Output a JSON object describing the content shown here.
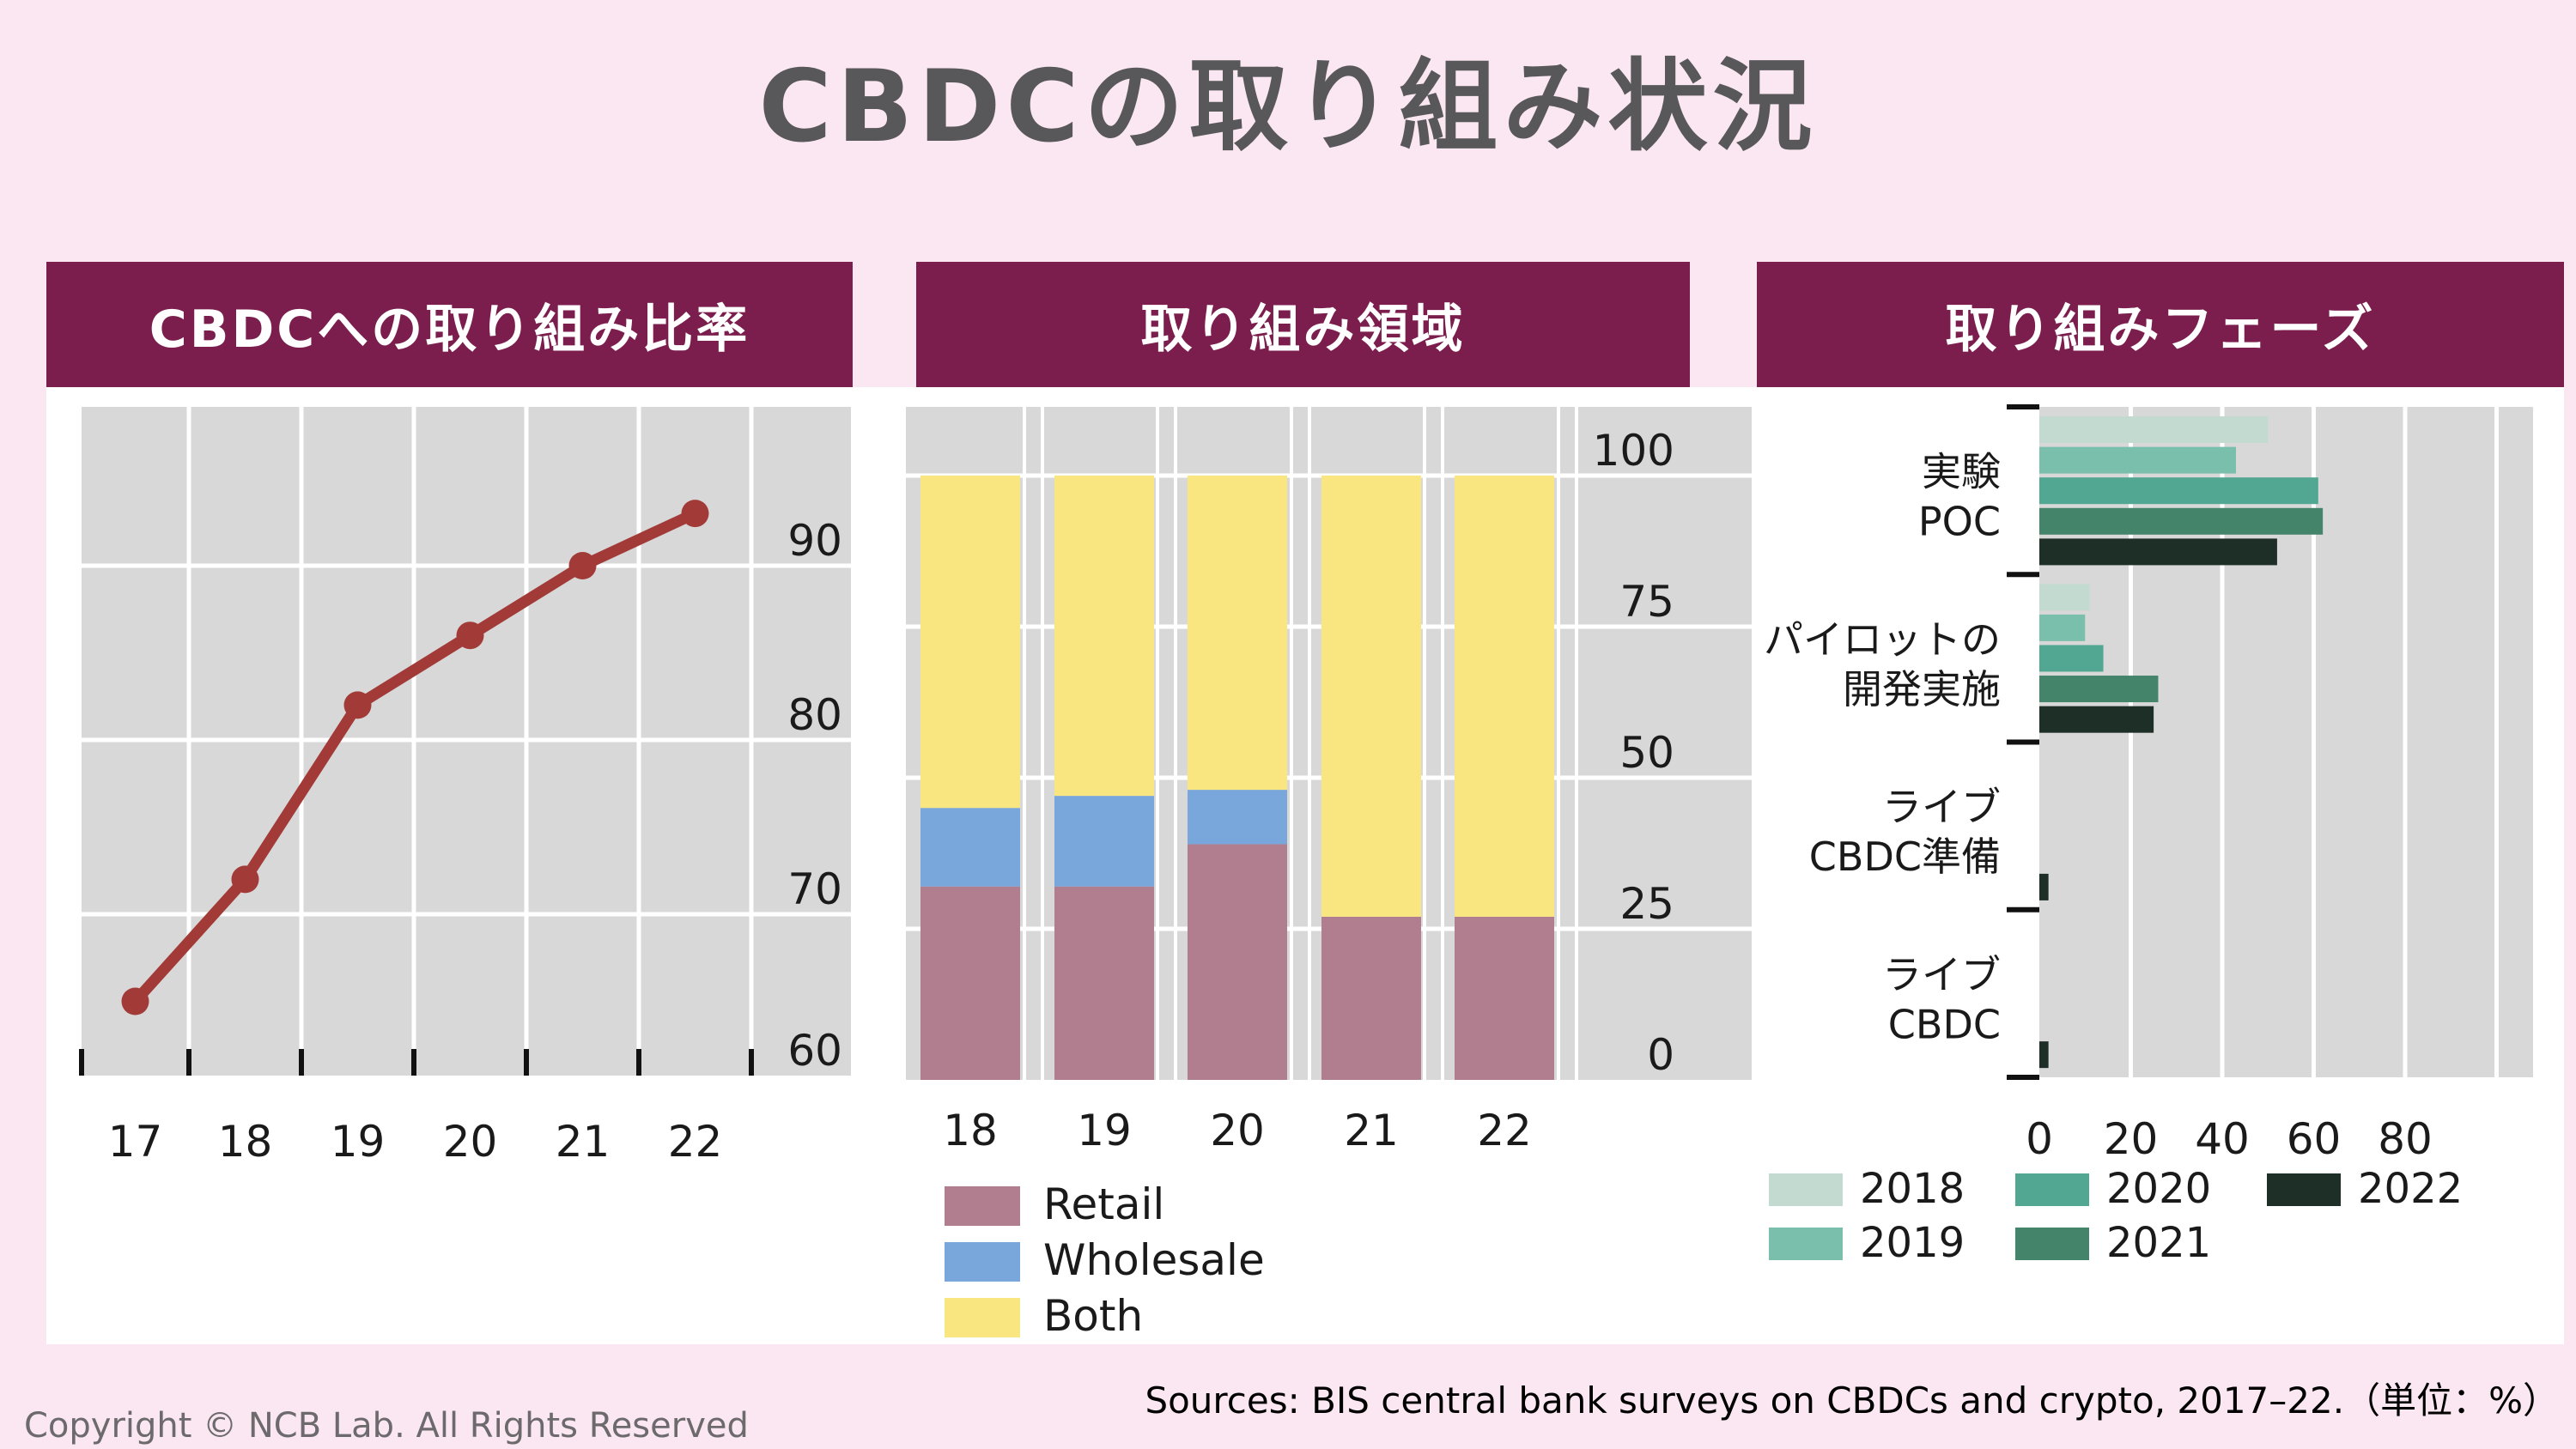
{
  "page": {
    "title": "CBDCの取り組み状況",
    "source_note": "Sources: BIS central bank surveys on CBDCs and crypto, 2017–22.（単位：%）",
    "copyright": "Copyright © NCB Lab. All Rights Reserved",
    "colors": {
      "background": "#fbe7f1",
      "panel_header": "#7b1e4e",
      "panel_bg": "#ffffff",
      "plot_bg": "#d8d8d8",
      "gridline": "#ffffff",
      "title_text": "#58585a",
      "axis_text": "#1a1a1a",
      "tick_mark": "#111111",
      "copyright_text": "#6c6a6c"
    }
  },
  "panels": [
    {
      "title": "CBDCへの取り組み比率"
    },
    {
      "title": "取り組み領域"
    },
    {
      "title": "取り組みフェーズ"
    }
  ],
  "chart_data": [
    {
      "panel": "CBDCへの取り組み比率",
      "type": "line",
      "x": [
        "17",
        "18",
        "19",
        "20",
        "21",
        "22"
      ],
      "values": [
        65,
        72,
        82,
        86,
        90,
        93
      ],
      "ylim": [
        60,
        100
      ],
      "yticks": [
        60,
        70,
        80,
        90
      ],
      "line_color": "#a23b38",
      "unit": "%",
      "grid": true,
      "legend_position": "none"
    },
    {
      "panel": "取り組み領域",
      "type": "bar",
      "stacked": true,
      "categories": [
        "18",
        "19",
        "20",
        "21",
        "22"
      ],
      "series": [
        {
          "name": "Retail",
          "color": "#b17e8f",
          "values": [
            32,
            32,
            39,
            27,
            27
          ]
        },
        {
          "name": "Wholesale",
          "color": "#79a7dc",
          "values": [
            13,
            15,
            9,
            0,
            0
          ]
        },
        {
          "name": "Both",
          "color": "#f9e680",
          "values": [
            55,
            53,
            52,
            73,
            73
          ]
        }
      ],
      "ylim": [
        0,
        111
      ],
      "yticks": [
        0,
        25,
        50,
        75,
        100
      ],
      "unit": "%",
      "grid": true,
      "legend_position": "bottom-left"
    },
    {
      "panel": "取り組みフェーズ",
      "type": "bar",
      "orientation": "horizontal",
      "categories": [
        [
          "実験",
          "POC"
        ],
        [
          "パイロットの",
          "開発実施"
        ],
        [
          "ライブ",
          "CBDC準備"
        ],
        [
          "ライブ",
          "CBDC"
        ]
      ],
      "series": [
        {
          "name": "2018",
          "color": "#c3dad0",
          "values": [
            50,
            11,
            0,
            0
          ]
        },
        {
          "name": "2019",
          "color": "#79bfab",
          "values": [
            43,
            10,
            0,
            0
          ]
        },
        {
          "name": "2020",
          "color": "#51a791",
          "values": [
            61,
            14,
            0,
            0
          ]
        },
        {
          "name": "2021",
          "color": "#44846b",
          "values": [
            62,
            26,
            0,
            0
          ]
        },
        {
          "name": "2022",
          "color": "#1e2f27",
          "values": [
            52,
            25,
            2,
            2
          ]
        }
      ],
      "xlim": [
        0,
        108
      ],
      "xticks": [
        0,
        20,
        40,
        60,
        80
      ],
      "unit": "%",
      "grid": true,
      "legend_position": "bottom"
    }
  ]
}
